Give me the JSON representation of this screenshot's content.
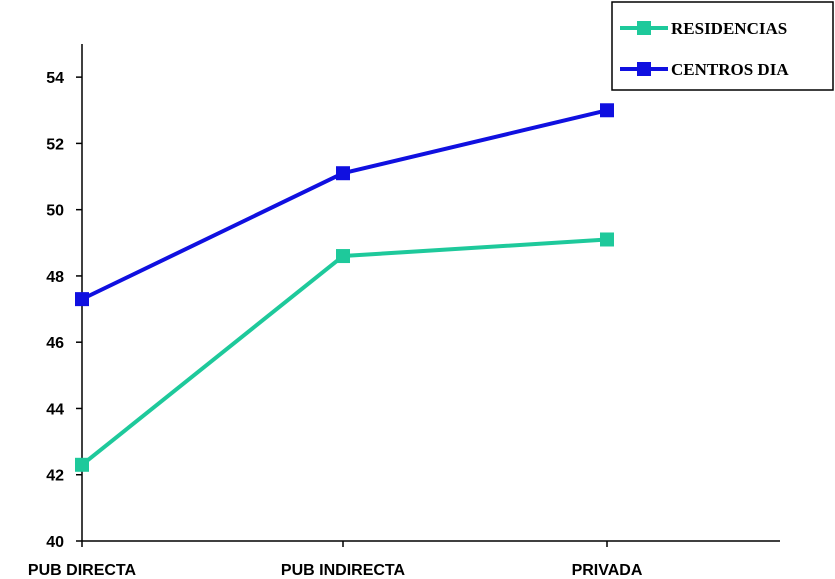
{
  "chart_data": {
    "type": "line",
    "categories": [
      "PUB DIRECTA",
      "PUB INDIRECTA",
      "PRIVADA"
    ],
    "series": [
      {
        "name": "RESIDENCIAS",
        "values": [
          42.3,
          48.6,
          49.1
        ],
        "color": "#1ec99b",
        "marker": "square"
      },
      {
        "name": "CENTROS DIA",
        "values": [
          47.3,
          51.1,
          53.0
        ],
        "color": "#1010e0",
        "marker": "square"
      }
    ],
    "ylim": [
      40,
      55
    ],
    "yticks": [
      "40",
      "42",
      "44",
      "46",
      "48",
      "50",
      "52",
      "54"
    ],
    "grid": false,
    "legend_position": "top-right",
    "title": "",
    "xlabel": "",
    "ylabel": ""
  }
}
